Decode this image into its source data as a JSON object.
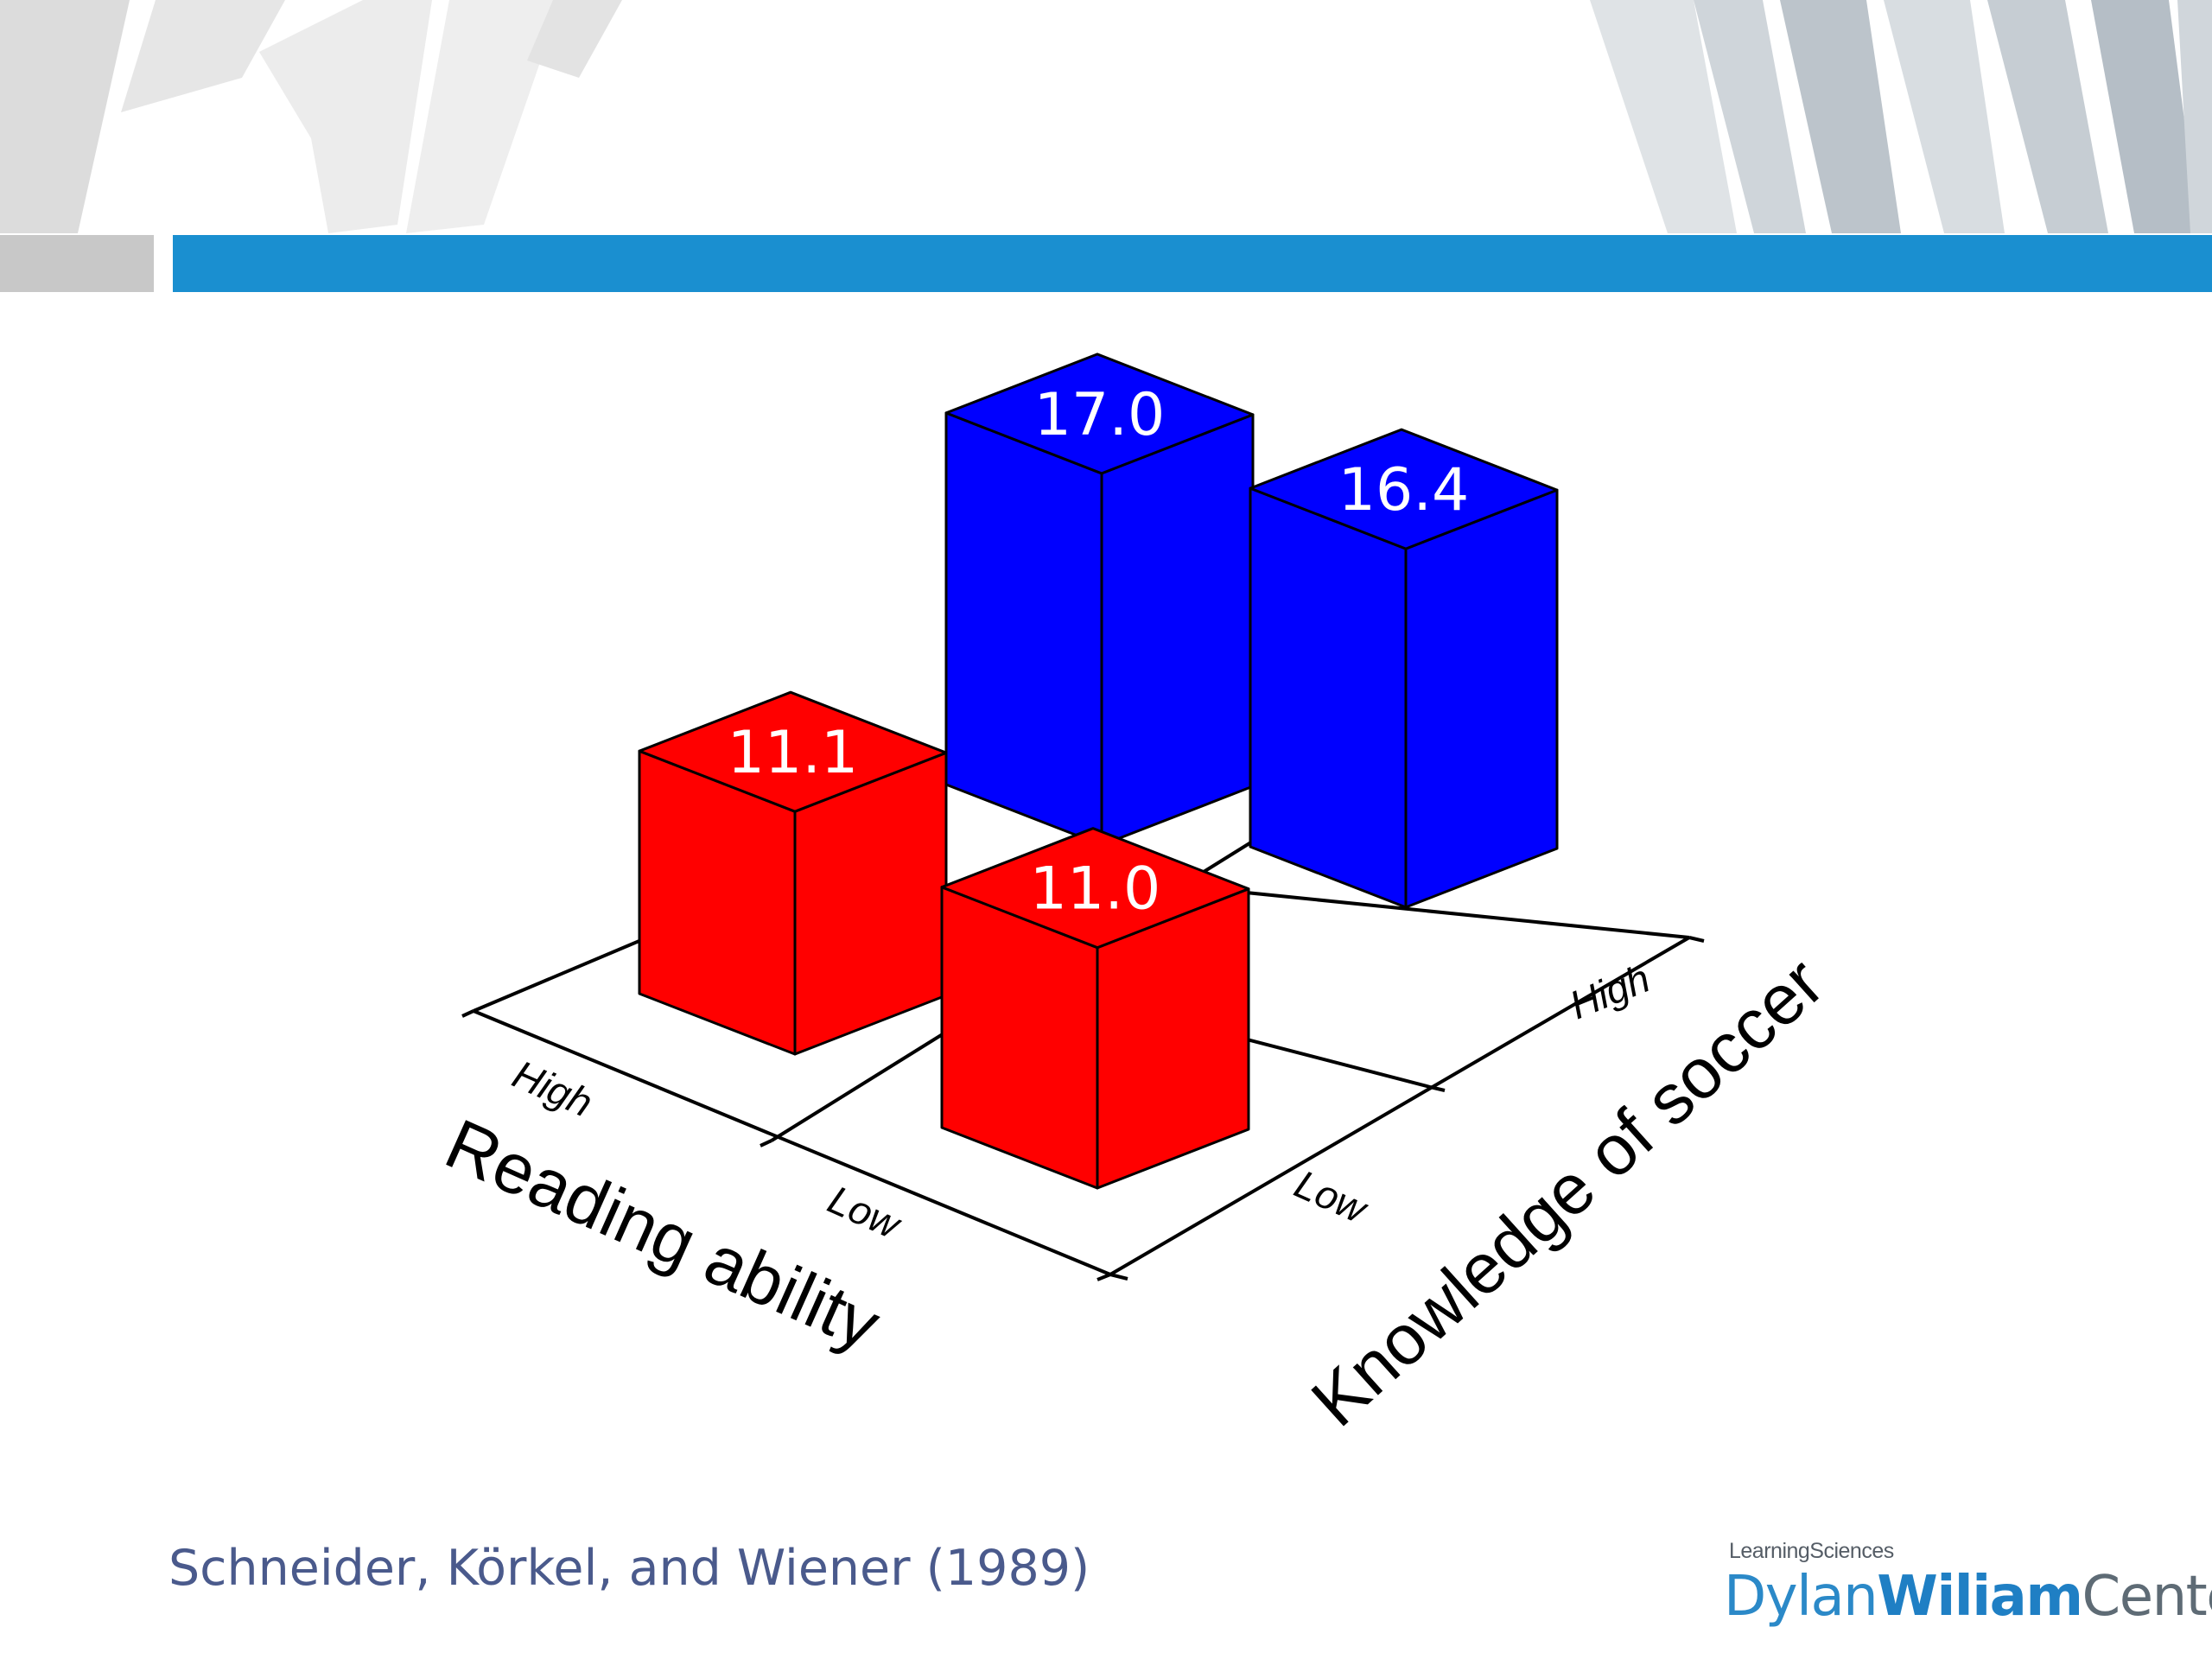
{
  "citation": "Schneider, Körkel, and Wiener (1989)",
  "logo": {
    "top_text": "LearningSciences",
    "name_part1": "Dylan",
    "name_part2": "Wiliam",
    "name_part3": "Center"
  },
  "colors": {
    "header_bar": "#1a8fd0",
    "header_gray": "#c8c8c8",
    "low_knowledge_bars": "#ff0000",
    "high_knowledge_bars": "#0000ff",
    "label_text": "#ffffff"
  },
  "chart_data": {
    "type": "bar",
    "subtype": "3d-bar",
    "title": "",
    "xlabel": "Reading ability",
    "ylabel": "Knowledge of soccer",
    "x_categories": [
      "High",
      "Low"
    ],
    "y_categories": [
      "Low",
      "High"
    ],
    "series": [
      {
        "name": "",
        "knowledge": "Low",
        "values": [
          11.1,
          11.0
        ]
      },
      {
        "name": "",
        "knowledge": "High",
        "values": [
          17.0,
          16.4
        ]
      }
    ],
    "data_labels": [
      "11.1",
      "11.0",
      "17.0",
      "16.4"
    ]
  }
}
